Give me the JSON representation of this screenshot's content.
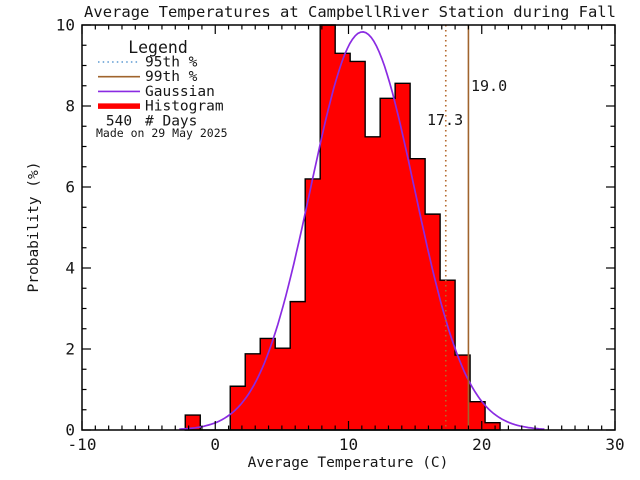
{
  "title": "Average Temperatures at CampbellRiver Station during Fall",
  "watermark": "Made on 29 May 2025",
  "axes": {
    "xlabel": "Average Temperature (C)",
    "ylabel": "Probability (%)",
    "xlim": [
      -10,
      30
    ],
    "ylim": [
      0,
      10
    ],
    "x_major_ticks": [
      -10,
      0,
      10,
      20,
      30
    ],
    "y_major_ticks": [
      0,
      2,
      4,
      6,
      8,
      10
    ],
    "x_minor_step": 1,
    "y_minor_step": 0.5
  },
  "legend": {
    "header": "Legend",
    "items": [
      {
        "label": "95th %",
        "style": "dotted",
        "color_key": "legend_p95_blue"
      },
      {
        "label": "99th %",
        "style": "solid",
        "color_key": "brown"
      },
      {
        "label": "Gaussian",
        "style": "solid",
        "color_key": "purple"
      },
      {
        "label": "Histogram",
        "style": "thick",
        "color_key": "red"
      }
    ],
    "days_value": "540",
    "days_label": "# Days"
  },
  "percentiles": {
    "p95": {
      "value": 17.3,
      "label": "17.3",
      "line_style": "dotted"
    },
    "p99": {
      "value": 19.0,
      "label": "19.0",
      "line_style": "solid"
    }
  },
  "gaussian_fit": {
    "mean": 11.05,
    "sigma": 3.9,
    "amplitude": 9.83
  },
  "colors": {
    "red": "#ff0000",
    "purple": "#8a2be2",
    "brown": "#a0642d",
    "dotted_line_tan": "#b4692e",
    "p99_label_tan": "#ad7d3c",
    "p95_label_blue": "#2f8fe0",
    "legend_p95_blue": "#5c9ad2",
    "axis_black": "#161616",
    "watermark_gray": "#c9c9c9"
  },
  "chart_data": {
    "type": "bar",
    "subtype": "histogram",
    "title": "Average Temperatures at CampbellRiver Station during Fall",
    "xlabel": "Average Temperature (C)",
    "ylabel": "Probability (%)",
    "xlim": [
      -10,
      30
    ],
    "ylim": [
      0,
      10
    ],
    "grid": false,
    "legend_position": "upper-left",
    "n_days": 540,
    "bin_edges": [
      -2.25,
      -1.125,
      0,
      1.125,
      2.25,
      3.375,
      4.5,
      5.625,
      6.75,
      7.875,
      9,
      10.125,
      11.25,
      12.375,
      13.5,
      14.625,
      15.75,
      16.875,
      18,
      19.125,
      20.25,
      21.375
    ],
    "values": [
      0.37,
      0,
      0,
      1.08,
      1.88,
      2.26,
      2.02,
      3.17,
      6.2,
      10.0,
      9.3,
      9.1,
      7.24,
      8.19,
      8.56,
      6.7,
      5.33,
      3.7,
      1.85,
      0.7,
      0.18
    ],
    "gaussian": {
      "mean": 11.05,
      "sigma": 3.9,
      "amplitude": 9.83
    },
    "percentile_95": 17.3,
    "percentile_99": 19.0
  }
}
